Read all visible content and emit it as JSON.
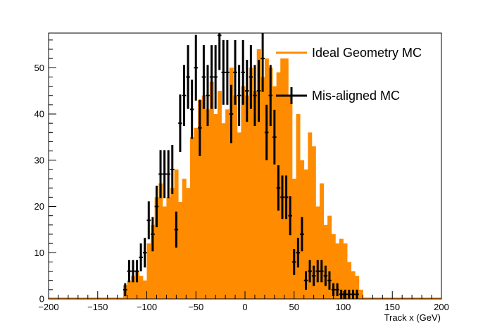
{
  "chart_data": {
    "type": "bar",
    "xlabel": "Track x (GeV)",
    "ylabel": "",
    "xlim": [
      -200,
      200
    ],
    "ylim": [
      0,
      57.5
    ],
    "x_ticks": [
      -200,
      -150,
      -100,
      -50,
      0,
      50,
      100,
      150,
      200
    ],
    "y_ticks": [
      0,
      10,
      20,
      30,
      40,
      50
    ],
    "x_tick_labels": [
      "−200",
      "−150",
      "−100",
      "−50",
      "0",
      "50",
      "100",
      "150",
      "200"
    ],
    "y_tick_labels": [
      "0",
      "10",
      "20",
      "30",
      "40",
      "50"
    ],
    "bin_width": 4,
    "series": [
      {
        "name": "Ideal Geometry MC",
        "style": "histogram",
        "color": "#ff8c00",
        "x": [
          -122,
          -118,
          -114,
          -110,
          -106,
          -102,
          -98,
          -94,
          -90,
          -86,
          -82,
          -78,
          -74,
          -70,
          -66,
          -62,
          -58,
          -54,
          -50,
          -46,
          -42,
          -38,
          -34,
          -30,
          -26,
          -22,
          -18,
          -14,
          -10,
          -6,
          -2,
          2,
          6,
          10,
          14,
          18,
          22,
          26,
          30,
          34,
          38,
          42,
          46,
          50,
          54,
          58,
          62,
          66,
          70,
          74,
          78,
          82,
          86,
          90,
          94,
          98,
          102,
          106,
          110,
          114,
          118
        ],
        "values": [
          3,
          4,
          5,
          6,
          5,
          4,
          12,
          16,
          22,
          25,
          20,
          22,
          24,
          28,
          21,
          26,
          24,
          35,
          37,
          43,
          44,
          41,
          47,
          40,
          45,
          38,
          41,
          50,
          44,
          36,
          46,
          44,
          50,
          45,
          54,
          48,
          52,
          50,
          46,
          49,
          52,
          52,
          44,
          26,
          40,
          30,
          28,
          36,
          33,
          20,
          25,
          16,
          18,
          14,
          12,
          13,
          12,
          8,
          6,
          5,
          2
        ]
      },
      {
        "name": "Mis-aligned MC",
        "style": "errorbars",
        "color": "#000000",
        "x": [
          -122,
          -118,
          -114,
          -110,
          -106,
          -102,
          -98,
          -94,
          -90,
          -86,
          -82,
          -78,
          -74,
          -70,
          -66,
          -62,
          -58,
          -54,
          -50,
          -46,
          -42,
          -38,
          -34,
          -30,
          -26,
          -22,
          -18,
          -14,
          -10,
          -6,
          -2,
          2,
          6,
          10,
          14,
          18,
          22,
          26,
          30,
          34,
          38,
          42,
          46,
          50,
          54,
          58,
          62,
          66,
          70,
          74,
          78,
          82,
          86,
          90,
          94,
          98,
          102,
          106,
          110,
          114
        ],
        "values": [
          2,
          6,
          6,
          6,
          9,
          10,
          17,
          14,
          20,
          27,
          27,
          27,
          28,
          15,
          38,
          44,
          48,
          41,
          50,
          37,
          48,
          44,
          48,
          48,
          57,
          49,
          49,
          40,
          49,
          44,
          49,
          45,
          48,
          44,
          45,
          52,
          36,
          44,
          35,
          24,
          22,
          22,
          18,
          8,
          10,
          14,
          4,
          6,
          5,
          6,
          6,
          5,
          4,
          2,
          2,
          1,
          1,
          1,
          1,
          1
        ],
        "errors": [
          1.4,
          2.4,
          2.4,
          2.4,
          3,
          3.2,
          4.1,
          3.7,
          4.5,
          5.2,
          5.2,
          5.2,
          5.3,
          3.9,
          6.2,
          6.6,
          6.9,
          6.4,
          7.1,
          6.1,
          6.9,
          6.6,
          6.9,
          6.9,
          7.5,
          7,
          7,
          6.3,
          7,
          6.6,
          7,
          6.7,
          6.9,
          6.6,
          6.7,
          7.2,
          6,
          6.6,
          5.9,
          4.9,
          4.7,
          4.7,
          4.2,
          2.8,
          3.2,
          3.7,
          2,
          2.4,
          2.2,
          2.4,
          2.4,
          2.2,
          2,
          1.4,
          1.4,
          1,
          1,
          1,
          1,
          1
        ]
      }
    ],
    "legend": {
      "placement": "top-right"
    },
    "grid": false
  }
}
